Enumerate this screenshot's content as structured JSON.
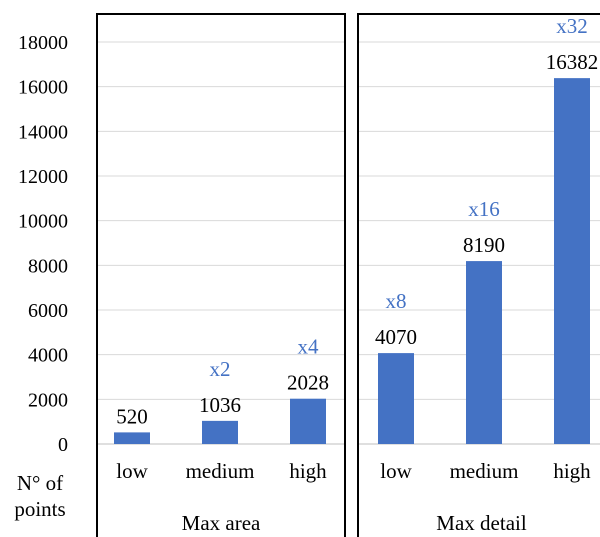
{
  "chart_data": {
    "type": "bar",
    "ylabel": "N° of points",
    "ylabel_lines": [
      "N° of",
      "points"
    ],
    "ylim": [
      0,
      18000
    ],
    "yticks": [
      0,
      2000,
      4000,
      6000,
      8000,
      10000,
      12000,
      14000,
      16000,
      18000
    ],
    "grid": true,
    "groups": [
      {
        "label": "Max area",
        "categories": [
          "low",
          "medium",
          "high"
        ],
        "values": [
          520,
          1036,
          2028
        ],
        "multipliers": [
          "",
          "x2",
          "x4"
        ]
      },
      {
        "label": "Max detail",
        "categories": [
          "low",
          "medium",
          "high"
        ],
        "values": [
          4070,
          8190,
          16382
        ],
        "multipliers": [
          "x8",
          "x16",
          "x32"
        ]
      }
    ],
    "colors": {
      "bar": "#4472C4",
      "multiplier": "#4472C4",
      "grid": "#d9d9d9",
      "text": "#000000",
      "border": "#000000"
    }
  }
}
